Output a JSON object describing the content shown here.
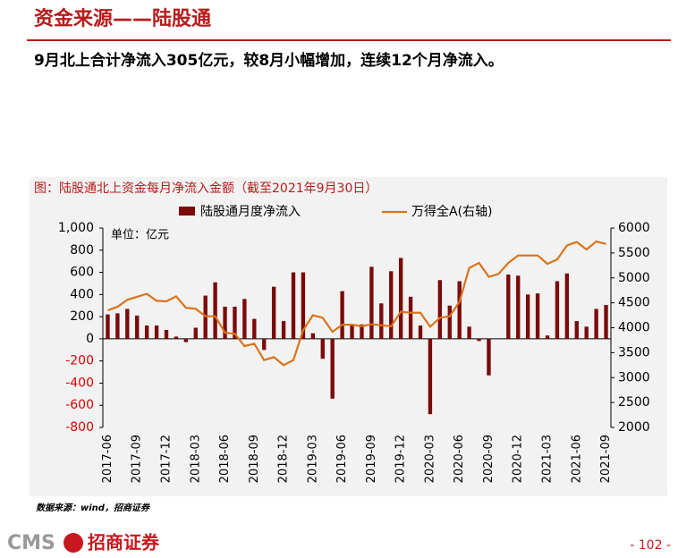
{
  "header": {
    "title": "资金来源——陆股通",
    "subtitle": "9月北上合计净流入305亿元，较8月小幅增加，连续12个月净流入。"
  },
  "chart_data": {
    "type": "bar-line",
    "title": "图：陆股通北上资金每月净流入金额（截至2021年9月30日）",
    "annotation": "单位：亿元",
    "categories": [
      "2017-06",
      null,
      null,
      "2017-09",
      null,
      null,
      "2017-12",
      null,
      null,
      "2018-03",
      null,
      null,
      "2018-06",
      null,
      null,
      "2018-09",
      null,
      null,
      "2018-12",
      null,
      null,
      "2019-03",
      null,
      null,
      "2019-06",
      null,
      null,
      "2019-09",
      null,
      null,
      "2019-12",
      null,
      null,
      "2020-03",
      null,
      null,
      "2020-06",
      null,
      null,
      "2020-09",
      null,
      null,
      "2020-12",
      null,
      null,
      "2021-03",
      null,
      null,
      "2021-06",
      null,
      null,
      "2021-09"
    ],
    "series": [
      {
        "name": "陆股通月度净流入",
        "color": "#7b0a0a",
        "values": [
          220,
          230,
          270,
          210,
          120,
          120,
          80,
          20,
          -30,
          100,
          390,
          510,
          290,
          290,
          360,
          180,
          -100,
          470,
          160,
          600,
          600,
          50,
          -180,
          -540,
          430,
          120,
          130,
          650,
          320,
          610,
          730,
          380,
          120,
          -680,
          530,
          300,
          520,
          110,
          -20,
          -330,
          0,
          580,
          570,
          400,
          410,
          30,
          520,
          590,
          160,
          110,
          270,
          305
        ]
      },
      {
        "name": "万得全A(右轴)",
        "color": "#d9731a",
        "axis": "y2",
        "values": [
          4350,
          4420,
          4560,
          4620,
          4680,
          4540,
          4530,
          4630,
          4400,
          4380,
          4230,
          4230,
          3900,
          3880,
          3630,
          3680,
          3350,
          3410,
          3250,
          3350,
          3950,
          4250,
          4200,
          3920,
          4060,
          4060,
          4030,
          4070,
          4050,
          4030,
          4320,
          4300,
          4300,
          4020,
          4200,
          4230,
          4520,
          5200,
          5300,
          5020,
          5080,
          5300,
          5450,
          5450,
          5450,
          5280,
          5370,
          5650,
          5720,
          5570,
          5730,
          5680
        ]
      }
    ],
    "ylim": [
      -800,
      1000
    ],
    "yticks": [
      -800,
      -600,
      -400,
      -200,
      0,
      200,
      400,
      600,
      800,
      {
        "value": 1000,
        "label": "1,000"
      }
    ],
    "y2lim": [
      2000,
      6000
    ],
    "y2ticks": [
      2000,
      2500,
      3000,
      3500,
      4000,
      4500,
      5000,
      5500,
      6000
    ]
  },
  "footer": {
    "source": "数据来源：wind，招商证券",
    "logo": "CMS",
    "company": "招商证券",
    "page": "- 102 -"
  }
}
